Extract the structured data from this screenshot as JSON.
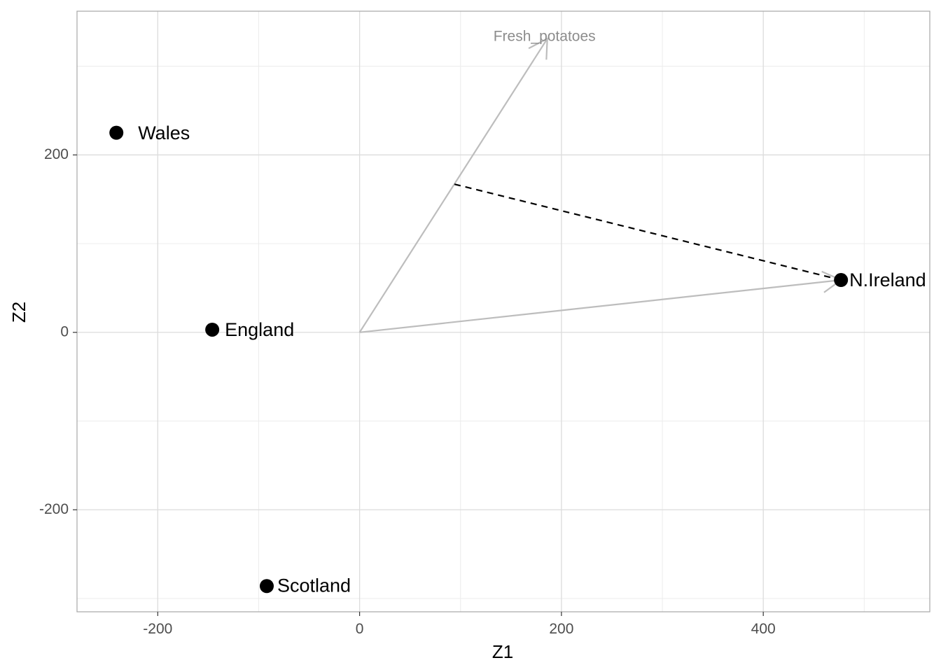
{
  "chart_data": {
    "type": "scatter",
    "title": "",
    "xlabel": "Z1",
    "ylabel": "Z2",
    "xlim": [
      -280,
      565
    ],
    "ylim": [
      -315,
      362
    ],
    "x_ticks": [
      -200,
      0,
      200,
      400
    ],
    "y_ticks": [
      -200,
      0,
      200
    ],
    "x_tick_labels": [
      "-200",
      "0",
      "200",
      "400"
    ],
    "y_tick_labels": [
      "-200",
      "0",
      "200"
    ],
    "x_minor": [
      -100,
      100,
      300,
      500
    ],
    "y_minor": [
      -300,
      -100,
      100,
      300
    ],
    "grid": true,
    "points": [
      {
        "label": "Wales",
        "x": -241,
        "y": 225
      },
      {
        "label": "England",
        "x": -146,
        "y": 3
      },
      {
        "label": "Scotland",
        "x": -92,
        "y": -286
      },
      {
        "label": "N.Ireland",
        "x": 477,
        "y": 59
      }
    ],
    "vectors": [
      {
        "label": "Fresh_potatoes",
        "x0": 0,
        "y0": 0,
        "x1": 186,
        "y1": 331
      },
      {
        "label": "",
        "x0": 0,
        "y0": 0,
        "x1": 477,
        "y1": 59
      }
    ],
    "projection_line": {
      "x0": 94,
      "y0": 167,
      "x1": 477,
      "y1": 59,
      "style": "dashed"
    },
    "colors": {
      "points": "#000000",
      "vectors": "#bdbdbd",
      "vector_label": "#8c8c8c",
      "grid_major": "#dcdcdc",
      "grid_minor": "#ececec",
      "panel_border": "#a6a6a6",
      "projection": "#000000"
    }
  }
}
